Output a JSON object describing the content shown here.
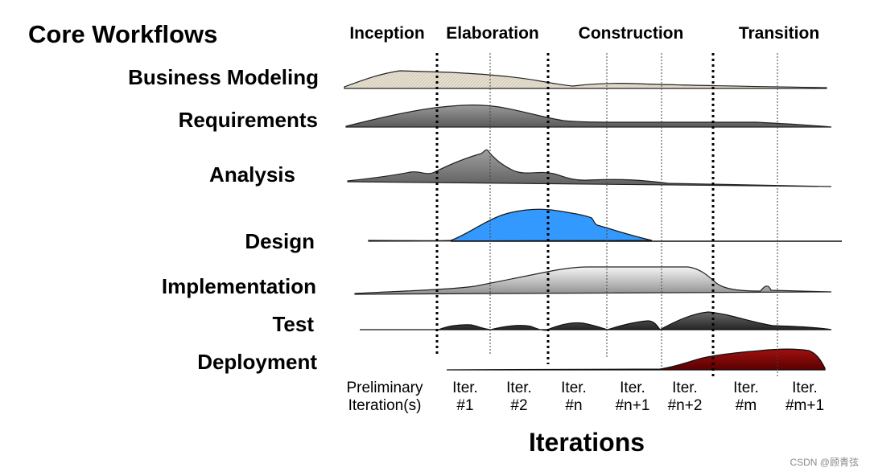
{
  "title": "Core Workflows",
  "phases": [
    "Inception",
    "Elaboration",
    "Construction",
    "Transition"
  ],
  "workflows": [
    "Business Modeling",
    "Requirements",
    "Analysis",
    "Design",
    "Implementation",
    "Test",
    "Deployment"
  ],
  "iterations": [
    {
      "line1": "Preliminary",
      "line2": "Iteration(s)"
    },
    {
      "line1": "Iter.",
      "line2": "#1"
    },
    {
      "line1": "Iter.",
      "line2": "#2"
    },
    {
      "line1": "Iter.",
      "line2": "#n"
    },
    {
      "line1": "Iter.",
      "line2": "#n+1"
    },
    {
      "line1": "Iter.",
      "line2": "#n+2"
    },
    {
      "line1": "Iter.",
      "line2": "#m"
    },
    {
      "line1": "Iter.",
      "line2": "#m+1"
    }
  ],
  "x_axis_label": "Iterations",
  "watermark": "CSDN @顾青弦",
  "colors": {
    "business_modeling": "#e3dccd",
    "requirements": "#7d7d7d",
    "analysis": "#808080",
    "design": "#3399ff",
    "implementation": "#d6d6d6",
    "test": "#4d4d4d",
    "deployment": "#8b0000"
  }
}
